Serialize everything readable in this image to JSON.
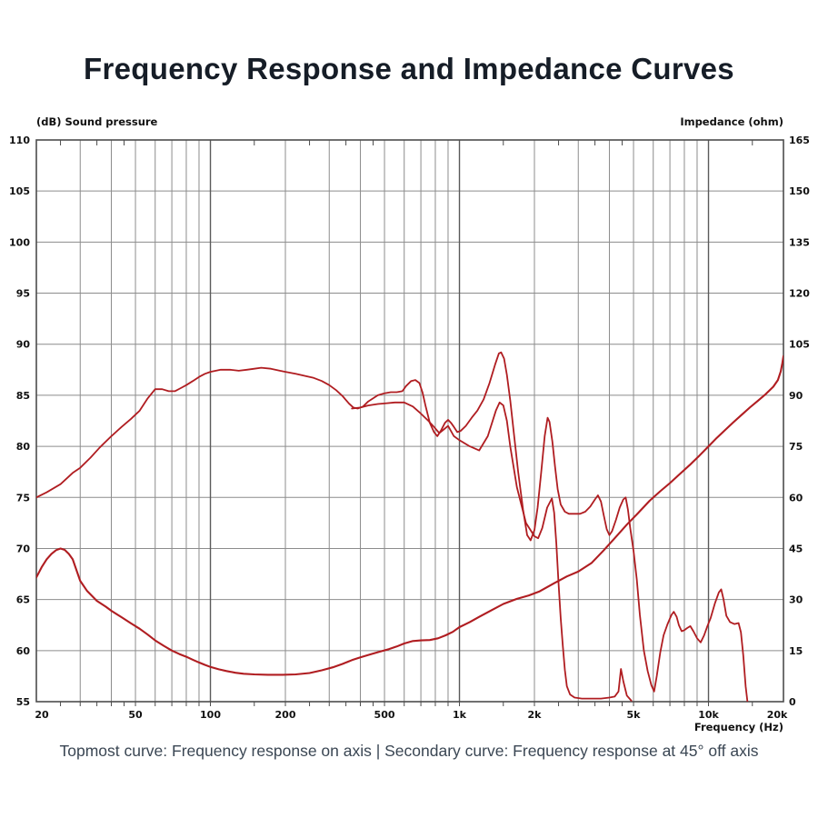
{
  "title": "Frequency Response and Impedance Curves",
  "caption": "Topmost curve: Frequency response on axis | Secondary curve: Frequency response at 45° off axis",
  "axes": {
    "left_header": "(dB)  Sound pressure",
    "right_header": "Impedance  (ohm)",
    "x_header": "Frequency  (Hz)",
    "left_tick_labels": [
      "110",
      "105",
      "100",
      "95",
      "90",
      "85",
      "80",
      "75",
      "70",
      "65",
      "60",
      "55"
    ],
    "right_tick_labels": [
      "165",
      "150",
      "135",
      "120",
      "105",
      "90",
      "75",
      "60",
      "45",
      "30",
      "15",
      "0"
    ],
    "x_tick_labels": [
      {
        "f": 20,
        "label": "20"
      },
      {
        "f": 50,
        "label": "50"
      },
      {
        "f": 100,
        "label": "100"
      },
      {
        "f": 200,
        "label": "200"
      },
      {
        "f": 500,
        "label": "500"
      },
      {
        "f": 1000,
        "label": "1k"
      },
      {
        "f": 2000,
        "label": "2k"
      },
      {
        "f": 5000,
        "label": "5k"
      },
      {
        "f": 10000,
        "label": "10k"
      },
      {
        "f": 20000,
        "label": "20k"
      }
    ]
  },
  "colors": {
    "curve_red": "#b01d21",
    "grid_minor": "#8c8c8c",
    "grid_decade": "#5a5a5a",
    "border": "#4c4c4c",
    "title_text": "#161d27",
    "caption_text": "#3a4653",
    "background": "#ffffff"
  },
  "chart_data": {
    "type": "line",
    "title": "Frequency Response and Impedance Curves",
    "x_scale": "log",
    "x_range_hz": [
      20,
      20000
    ],
    "y_left_label": "(dB) Sound pressure",
    "y_left_range_db": [
      55,
      110
    ],
    "y_left_step_db": 5,
    "y_right_label": "Impedance (ohm)",
    "y_right_range_ohm": [
      0,
      165
    ],
    "y_right_step_ohm": 15,
    "grid": "on",
    "grid_major_hz": [
      30,
      40,
      50,
      60,
      70,
      80,
      90,
      100,
      200,
      300,
      400,
      500,
      600,
      700,
      800,
      900,
      1000,
      2000,
      3000,
      4000,
      5000,
      6000,
      7000,
      8000,
      9000,
      10000
    ],
    "grid_decade_hz": [
      100,
      1000,
      10000
    ],
    "grid_minor_tick_hz": [
      25,
      35,
      45,
      150,
      250,
      350,
      450,
      1500,
      2500,
      3500,
      4500,
      15000
    ],
    "series": [
      {
        "name": "Frequency response on axis",
        "axis": "left",
        "unit": "dB",
        "points": [
          [
            20,
            75.0
          ],
          [
            22,
            75.5
          ],
          [
            25,
            76.3
          ],
          [
            28,
            77.4
          ],
          [
            30,
            77.9
          ],
          [
            33,
            78.9
          ],
          [
            36,
            79.9
          ],
          [
            40,
            81.0
          ],
          [
            44,
            81.9
          ],
          [
            48,
            82.7
          ],
          [
            52,
            83.5
          ],
          [
            56,
            84.7
          ],
          [
            60,
            85.6
          ],
          [
            64,
            85.6
          ],
          [
            68,
            85.4
          ],
          [
            72,
            85.4
          ],
          [
            76,
            85.7
          ],
          [
            80,
            86.0
          ],
          [
            85,
            86.4
          ],
          [
            90,
            86.8
          ],
          [
            95,
            87.1
          ],
          [
            100,
            87.3
          ],
          [
            110,
            87.5
          ],
          [
            120,
            87.5
          ],
          [
            130,
            87.4
          ],
          [
            140,
            87.5
          ],
          [
            150,
            87.6
          ],
          [
            160,
            87.7
          ],
          [
            175,
            87.6
          ],
          [
            190,
            87.4
          ],
          [
            200,
            87.3
          ],
          [
            220,
            87.1
          ],
          [
            240,
            86.9
          ],
          [
            260,
            86.7
          ],
          [
            280,
            86.4
          ],
          [
            300,
            86.0
          ],
          [
            320,
            85.5
          ],
          [
            340,
            84.9
          ],
          [
            360,
            84.2
          ],
          [
            375,
            83.8
          ],
          [
            390,
            83.7
          ],
          [
            410,
            83.9
          ],
          [
            430,
            84.4
          ],
          [
            450,
            84.7
          ],
          [
            470,
            85.0
          ],
          [
            500,
            85.2
          ],
          [
            530,
            85.3
          ],
          [
            560,
            85.3
          ],
          [
            590,
            85.4
          ],
          [
            610,
            85.9
          ],
          [
            640,
            86.4
          ],
          [
            665,
            86.5
          ],
          [
            690,
            86.2
          ],
          [
            710,
            85.3
          ],
          [
            730,
            84.0
          ],
          [
            760,
            82.3
          ],
          [
            790,
            81.4
          ],
          [
            815,
            81.0
          ],
          [
            845,
            81.6
          ],
          [
            875,
            82.3
          ],
          [
            900,
            82.6
          ],
          [
            925,
            82.3
          ],
          [
            950,
            81.9
          ],
          [
            980,
            81.4
          ],
          [
            1010,
            81.5
          ],
          [
            1060,
            82.0
          ],
          [
            1120,
            82.8
          ],
          [
            1180,
            83.5
          ],
          [
            1250,
            84.6
          ],
          [
            1320,
            86.2
          ],
          [
            1390,
            88.0
          ],
          [
            1440,
            89.1
          ],
          [
            1470,
            89.2
          ],
          [
            1510,
            88.6
          ],
          [
            1550,
            87.0
          ],
          [
            1600,
            84.5
          ],
          [
            1650,
            81.5
          ],
          [
            1720,
            77.5
          ],
          [
            1800,
            73.8
          ],
          [
            1870,
            71.3
          ],
          [
            1930,
            70.8
          ],
          [
            2000,
            71.8
          ],
          [
            2060,
            74.0
          ],
          [
            2130,
            77.5
          ],
          [
            2200,
            81.0
          ],
          [
            2260,
            82.8
          ],
          [
            2300,
            82.4
          ],
          [
            2360,
            80.5
          ],
          [
            2420,
            78.0
          ],
          [
            2480,
            75.8
          ],
          [
            2550,
            74.3
          ],
          [
            2650,
            73.6
          ],
          [
            2750,
            73.4
          ],
          [
            2900,
            73.4
          ],
          [
            3050,
            73.4
          ],
          [
            3200,
            73.6
          ],
          [
            3350,
            74.1
          ],
          [
            3500,
            74.8
          ],
          [
            3600,
            75.2
          ],
          [
            3700,
            74.6
          ],
          [
            3800,
            73.2
          ],
          [
            3900,
            71.9
          ],
          [
            4000,
            71.3
          ],
          [
            4100,
            71.7
          ],
          [
            4250,
            72.8
          ],
          [
            4400,
            74.0
          ],
          [
            4550,
            74.8
          ],
          [
            4650,
            75.0
          ],
          [
            4750,
            73.8
          ],
          [
            4850,
            72.0
          ],
          [
            5000,
            69.8
          ],
          [
            5150,
            67.0
          ],
          [
            5300,
            63.5
          ],
          [
            5500,
            60.0
          ],
          [
            5700,
            58.0
          ],
          [
            5900,
            56.6
          ],
          [
            6050,
            56.0
          ],
          [
            6200,
            57.5
          ],
          [
            6400,
            59.8
          ],
          [
            6600,
            61.5
          ],
          [
            6850,
            62.6
          ],
          [
            7100,
            63.5
          ],
          [
            7250,
            63.8
          ],
          [
            7450,
            63.3
          ],
          [
            7600,
            62.5
          ],
          [
            7800,
            61.9
          ],
          [
            8000,
            62.0
          ],
          [
            8200,
            62.2
          ],
          [
            8450,
            62.4
          ],
          [
            8700,
            61.9
          ],
          [
            9000,
            61.2
          ],
          [
            9300,
            60.8
          ],
          [
            9600,
            61.5
          ],
          [
            9900,
            62.4
          ],
          [
            10200,
            63.2
          ],
          [
            10600,
            64.6
          ],
          [
            11000,
            65.7
          ],
          [
            11250,
            66.0
          ],
          [
            11500,
            65.0
          ],
          [
            11800,
            63.4
          ],
          [
            12200,
            62.8
          ],
          [
            12700,
            62.6
          ],
          [
            13200,
            62.7
          ],
          [
            13500,
            61.8
          ],
          [
            13800,
            59.5
          ],
          [
            14100,
            56.5
          ],
          [
            14400,
            54.6
          ]
        ]
      },
      {
        "name": "Frequency response at 45° off axis",
        "axis": "left",
        "unit": "dB",
        "points": [
          [
            370,
            83.7
          ],
          [
            400,
            83.8
          ],
          [
            430,
            84.0
          ],
          [
            470,
            84.15
          ],
          [
            500,
            84.2
          ],
          [
            550,
            84.3
          ],
          [
            600,
            84.3
          ],
          [
            650,
            83.9
          ],
          [
            700,
            83.2
          ],
          [
            750,
            82.5
          ],
          [
            790,
            81.9
          ],
          [
            830,
            81.3
          ],
          [
            870,
            81.7
          ],
          [
            900,
            82.0
          ],
          [
            950,
            81.0
          ],
          [
            1000,
            80.6
          ],
          [
            1100,
            80.0
          ],
          [
            1200,
            79.6
          ],
          [
            1300,
            81.0
          ],
          [
            1400,
            83.5
          ],
          [
            1450,
            84.3
          ],
          [
            1500,
            84.0
          ],
          [
            1550,
            82.5
          ],
          [
            1600,
            80.0
          ],
          [
            1700,
            76.0
          ],
          [
            1850,
            72.5
          ],
          [
            2000,
            71.2
          ],
          [
            2070,
            71.0
          ],
          [
            2150,
            72.0
          ],
          [
            2250,
            74.0
          ],
          [
            2350,
            74.9
          ],
          [
            2400,
            73.5
          ],
          [
            2450,
            70.5
          ],
          [
            2500,
            66.5
          ],
          [
            2550,
            63.2
          ],
          [
            2600,
            60.5
          ],
          [
            2650,
            58.1
          ],
          [
            2700,
            56.5
          ],
          [
            2780,
            55.7
          ],
          [
            2900,
            55.4
          ],
          [
            3100,
            55.3
          ],
          [
            3400,
            55.3
          ],
          [
            3700,
            55.3
          ],
          [
            4000,
            55.4
          ],
          [
            4200,
            55.5
          ],
          [
            4350,
            56.0
          ],
          [
            4450,
            58.2
          ],
          [
            4550,
            57.0
          ],
          [
            4700,
            55.6
          ],
          [
            4900,
            55.1
          ]
        ]
      },
      {
        "name": "Impedance",
        "axis": "right",
        "unit": "ohm",
        "points": [
          [
            20,
            36.5
          ],
          [
            21,
            39.5
          ],
          [
            22,
            41.8
          ],
          [
            23,
            43.4
          ],
          [
            24,
            44.5
          ],
          [
            25,
            45.0
          ],
          [
            26,
            44.6
          ],
          [
            27,
            43.4
          ],
          [
            28,
            41.8
          ],
          [
            30,
            35.5
          ],
          [
            32,
            32.5
          ],
          [
            35,
            29.6
          ],
          [
            38,
            27.9
          ],
          [
            40,
            26.7
          ],
          [
            44,
            24.8
          ],
          [
            48,
            23.0
          ],
          [
            52,
            21.4
          ],
          [
            56,
            19.7
          ],
          [
            60,
            18.0
          ],
          [
            65,
            16.4
          ],
          [
            70,
            15.0
          ],
          [
            75,
            14.0
          ],
          [
            80,
            13.2
          ],
          [
            85,
            12.3
          ],
          [
            90,
            11.5
          ],
          [
            95,
            10.8
          ],
          [
            100,
            10.2
          ],
          [
            108,
            9.5
          ],
          [
            116,
            9.0
          ],
          [
            126,
            8.5
          ],
          [
            136,
            8.2
          ],
          [
            150,
            8.0
          ],
          [
            170,
            7.9
          ],
          [
            195,
            7.9
          ],
          [
            220,
            8.0
          ],
          [
            250,
            8.4
          ],
          [
            280,
            9.2
          ],
          [
            310,
            10.1
          ],
          [
            340,
            11.1
          ],
          [
            370,
            12.2
          ],
          [
            400,
            13.0
          ],
          [
            440,
            13.9
          ],
          [
            480,
            14.7
          ],
          [
            520,
            15.4
          ],
          [
            560,
            16.2
          ],
          [
            600,
            17.1
          ],
          [
            650,
            17.8
          ],
          [
            700,
            18.0
          ],
          [
            760,
            18.1
          ],
          [
            820,
            18.6
          ],
          [
            880,
            19.5
          ],
          [
            940,
            20.5
          ],
          [
            1000,
            21.9
          ],
          [
            1100,
            23.4
          ],
          [
            1200,
            24.9
          ],
          [
            1350,
            26.9
          ],
          [
            1500,
            28.7
          ],
          [
            1700,
            30.2
          ],
          [
            1900,
            31.2
          ],
          [
            2100,
            32.4
          ],
          [
            2400,
            34.8
          ],
          [
            2700,
            36.8
          ],
          [
            3000,
            38.2
          ],
          [
            3400,
            40.8
          ],
          [
            3800,
            44.5
          ],
          [
            4200,
            48.0
          ],
          [
            4700,
            52.0
          ],
          [
            5200,
            55.3
          ],
          [
            5800,
            59.0
          ],
          [
            6400,
            61.8
          ],
          [
            7000,
            64.2
          ],
          [
            7700,
            67.0
          ],
          [
            8400,
            69.5
          ],
          [
            9200,
            72.3
          ],
          [
            10000,
            75.0
          ],
          [
            10800,
            77.5
          ],
          [
            11700,
            79.9
          ],
          [
            12600,
            82.1
          ],
          [
            13600,
            84.3
          ],
          [
            14700,
            86.5
          ],
          [
            15800,
            88.4
          ],
          [
            17000,
            90.4
          ],
          [
            18200,
            92.5
          ],
          [
            19000,
            94.5
          ],
          [
            19500,
            97.0
          ],
          [
            19800,
            99.5
          ],
          [
            20000,
            101.5
          ]
        ]
      }
    ]
  }
}
